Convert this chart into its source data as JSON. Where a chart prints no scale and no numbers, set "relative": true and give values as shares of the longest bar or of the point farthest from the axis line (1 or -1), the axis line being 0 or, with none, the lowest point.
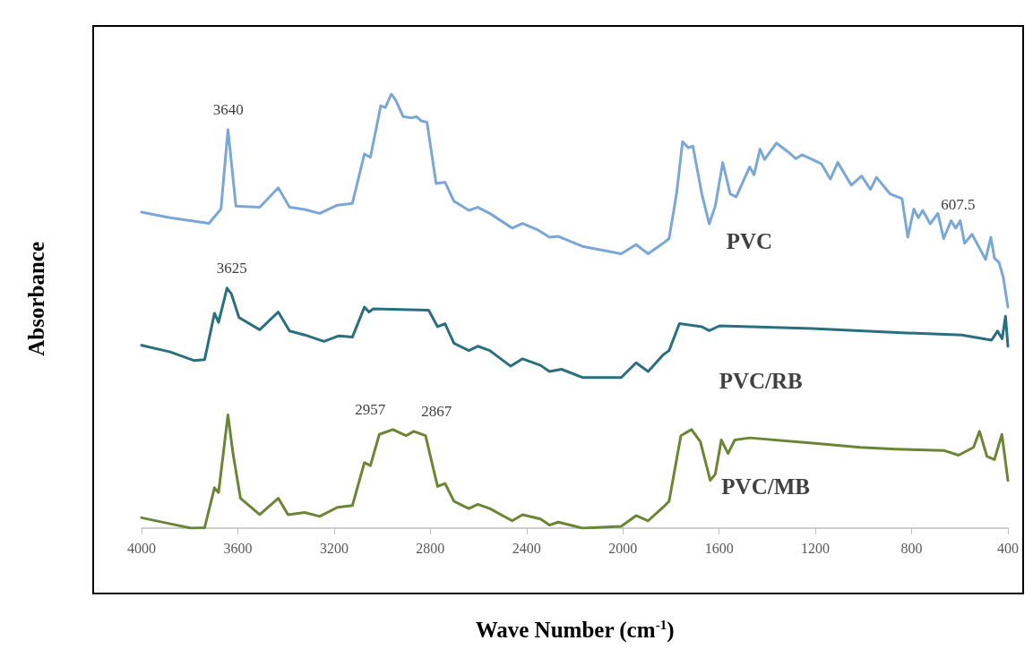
{
  "chart_data": {
    "type": "line",
    "relative": true,
    "xlabel": "Wave Number (cm$^{-1}$)",
    "ylabel": "Absorbance",
    "xlim": [
      4000,
      400
    ],
    "xticks": [
      4000,
      3600,
      3200,
      2800,
      2400,
      2000,
      1600,
      1200,
      800,
      400
    ],
    "marker": "none",
    "line_style": "solid",
    "annotations": [
      {
        "text": "3640",
        "x": 3640,
        "y": 0.918
      },
      {
        "text": "3625",
        "x": 3625,
        "y": 0.553
      },
      {
        "text": "2957",
        "x": 2957,
        "y": 0.227
      },
      {
        "text": "2867",
        "x": 2867,
        "y": 0.223
      },
      {
        "text": "607.5",
        "x": 607.5,
        "y": 0.7
      }
    ],
    "series": [
      {
        "name": "PVC",
        "color": "#7ba7d7",
        "x": [
          4000,
          3881,
          3720,
          3670,
          3641,
          3608,
          3509,
          3432,
          3385,
          3322,
          3260,
          3186,
          3124,
          3074,
          3049,
          3006,
          2987,
          2962,
          2944,
          2913,
          2876,
          2857,
          2838,
          2814,
          2776,
          2739,
          2702,
          2640,
          2603,
          2553,
          2460,
          2417,
          2354,
          2305,
          2268,
          2168,
          2007,
          1945,
          1895,
          1833,
          1808,
          1777,
          1752,
          1728,
          1709,
          1672,
          1641,
          1616,
          1585,
          1554,
          1529,
          1473,
          1455,
          1430,
          1411,
          1362,
          1312,
          1281,
          1256,
          1213,
          1175,
          1138,
          1107,
          1051,
          1008,
          971,
          946,
          890,
          840,
          816,
          791,
          772,
          754,
          723,
          691,
          667,
          636,
          617,
          598,
          580,
          549,
          493,
          471,
          456,
          437,
          419,
          400
        ],
        "values": [
          0.728,
          0.715,
          0.702,
          0.735,
          0.918,
          0.742,
          0.739,
          0.784,
          0.739,
          0.734,
          0.725,
          0.744,
          0.748,
          0.862,
          0.854,
          0.973,
          0.969,
          1,
          0.986,
          0.948,
          0.945,
          0.948,
          0.938,
          0.935,
          0.794,
          0.797,
          0.753,
          0.732,
          0.739,
          0.725,
          0.691,
          0.702,
          0.687,
          0.67,
          0.672,
          0.649,
          0.632,
          0.653,
          0.632,
          0.656,
          0.667,
          0.77,
          0.89,
          0.876,
          0.88,
          0.77,
          0.701,
          0.742,
          0.842,
          0.77,
          0.763,
          0.832,
          0.814,
          0.873,
          0.849,
          0.887,
          0.866,
          0.851,
          0.86,
          0.849,
          0.839,
          0.804,
          0.842,
          0.79,
          0.811,
          0.78,
          0.808,
          0.77,
          0.759,
          0.67,
          0.735,
          0.715,
          0.732,
          0.701,
          0.725,
          0.667,
          0.708,
          0.691,
          0.708,
          0.656,
          0.677,
          0.619,
          0.67,
          0.622,
          0.612,
          0.577,
          0.509
        ]
      },
      {
        "name": "PVC/RB",
        "color": "#2a6f80",
        "x": [
          4000,
          3881,
          3781,
          3738,
          3697,
          3680,
          3645,
          3627,
          3595,
          3509,
          3432,
          3385,
          3322,
          3242,
          3180,
          3124,
          3074,
          3055,
          3037,
          2807,
          2770,
          2739,
          2702,
          2640,
          2603,
          2553,
          2466,
          2417,
          2342,
          2305,
          2255,
          2168,
          2007,
          1945,
          1895,
          1833,
          1808,
          1765,
          1672,
          1641,
          1598,
          1213,
          840,
          592,
          468,
          443,
          424,
          410,
          400
        ],
        "values": [
          0.421,
          0.406,
          0.386,
          0.388,
          0.495,
          0.474,
          0.553,
          0.54,
          0.485,
          0.457,
          0.498,
          0.454,
          0.445,
          0.43,
          0.443,
          0.44,
          0.509,
          0.498,
          0.505,
          0.502,
          0.464,
          0.471,
          0.426,
          0.409,
          0.419,
          0.409,
          0.373,
          0.39,
          0.375,
          0.361,
          0.366,
          0.347,
          0.347,
          0.381,
          0.361,
          0.399,
          0.409,
          0.471,
          0.464,
          0.455,
          0.466,
          0.46,
          0.45,
          0.445,
          0.433,
          0.454,
          0.436,
          0.488,
          0.419
        ]
      },
      {
        "name": "PVC/MB",
        "color": "#6b8535",
        "x": [
          4000,
          3881,
          3794,
          3738,
          3697,
          3680,
          3641,
          3620,
          3589,
          3509,
          3432,
          3391,
          3322,
          3260,
          3186,
          3124,
          3074,
          3049,
          3012,
          2956,
          2901,
          2869,
          2820,
          2770,
          2739,
          2702,
          2640,
          2603,
          2553,
          2460,
          2417,
          2342,
          2305,
          2268,
          2168,
          2007,
          1945,
          1895,
          1833,
          1808,
          1759,
          1715,
          1678,
          1637,
          1616,
          1591,
          1563,
          1535,
          1473,
          1213,
          1014,
          865,
          667,
          605,
          543,
          518,
          487,
          456,
          425,
          400
        ],
        "values": [
          0.024,
          0.01,
          0,
          0.001,
          0.093,
          0.082,
          0.261,
          0.172,
          0.069,
          0.031,
          0.069,
          0.031,
          0.036,
          0.027,
          0.048,
          0.052,
          0.151,
          0.144,
          0.216,
          0.227,
          0.213,
          0.223,
          0.213,
          0.096,
          0.103,
          0.062,
          0.045,
          0.055,
          0.045,
          0.017,
          0.031,
          0.021,
          0.007,
          0.014,
          0,
          0.004,
          0.029,
          0.017,
          0.048,
          0.062,
          0.213,
          0.227,
          0.199,
          0.11,
          0.124,
          0.203,
          0.172,
          0.203,
          0.208,
          0.196,
          0.186,
          0.182,
          0.179,
          0.168,
          0.186,
          0.223,
          0.165,
          0.158,
          0.216,
          0.11
        ]
      }
    ]
  }
}
